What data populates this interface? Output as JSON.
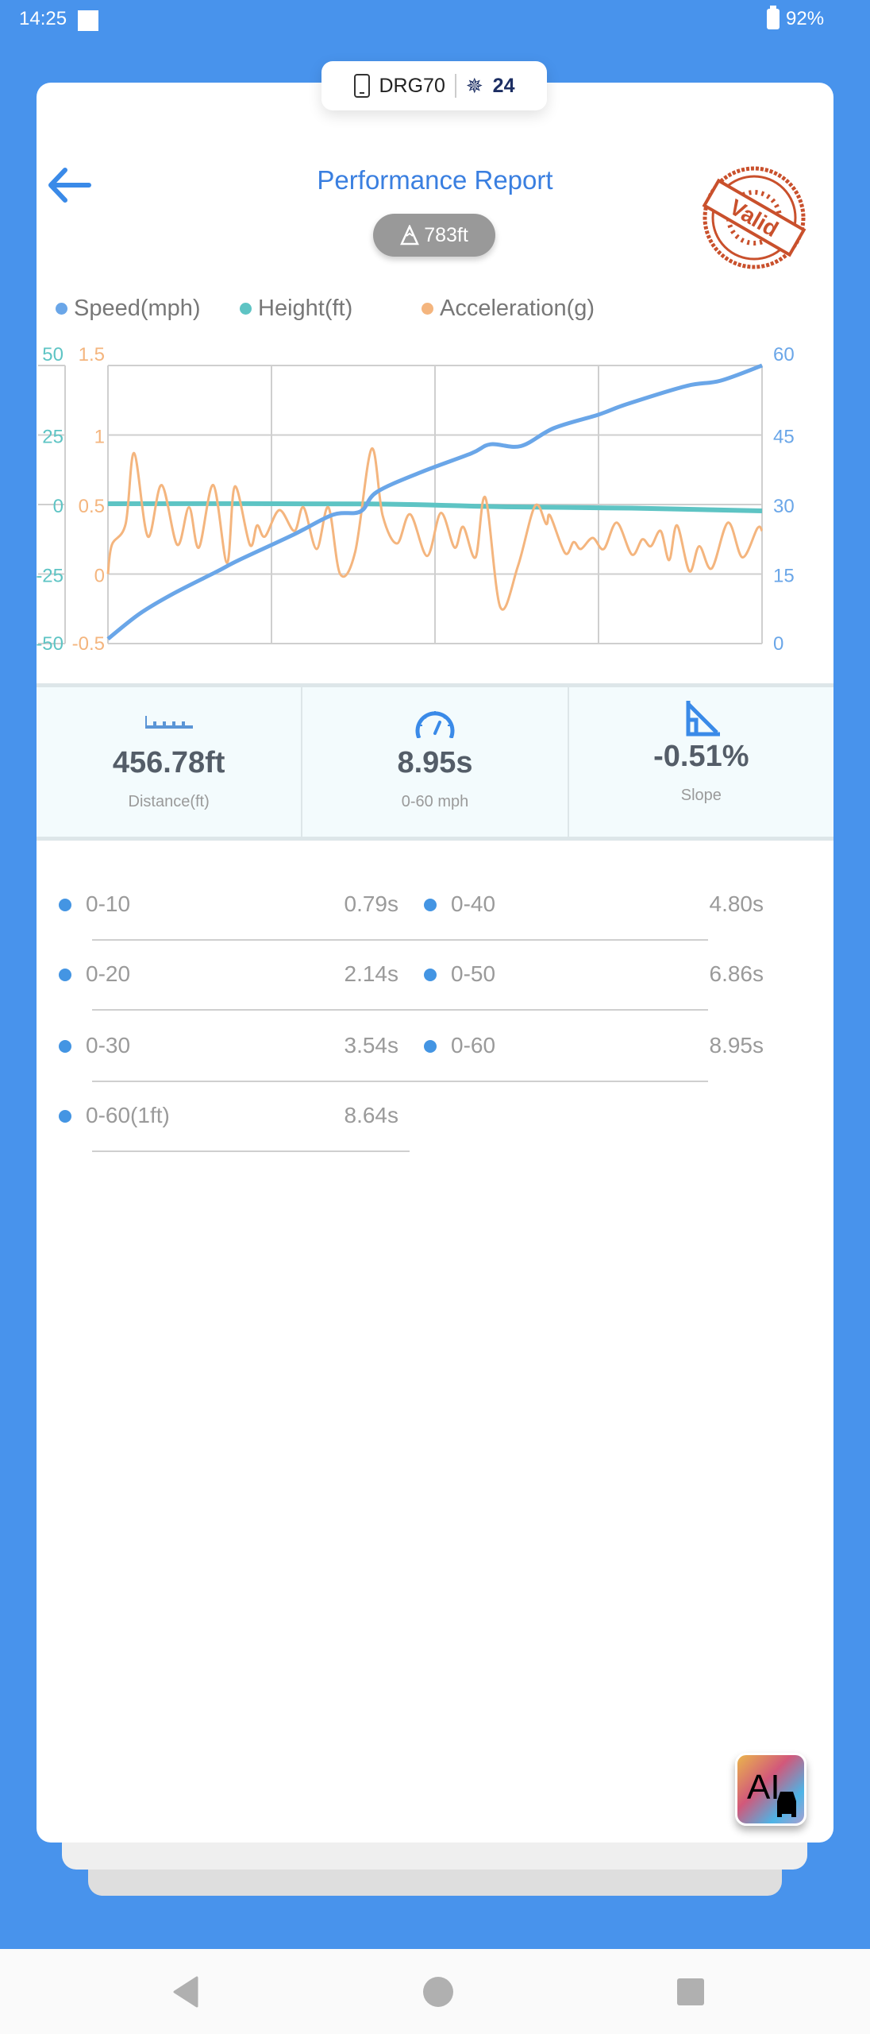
{
  "status_bar": {
    "time": "14:25",
    "battery": "92%"
  },
  "device": {
    "name": "DRG70",
    "satellites": "24"
  },
  "header": {
    "title": "Performance Report",
    "altitude": "783ft",
    "stamp": "Valid"
  },
  "colors": {
    "speed": "#6aa6e8",
    "height": "#5ec4c4",
    "acceleration": "#f4b57e",
    "accent": "#3a7fe0",
    "background": "#4893ec"
  },
  "chart_data": {
    "type": "line",
    "legend": [
      "Speed(mph)",
      "Height(ft)",
      "Acceleration(g)"
    ],
    "legend_position": "top",
    "grid": true,
    "axes": {
      "height": {
        "ticks": [
          "50",
          "25",
          "0",
          "-25",
          "-50"
        ],
        "range": [
          -50,
          50
        ],
        "side": "left"
      },
      "acceleration": {
        "ticks": [
          "1.5",
          "1",
          "0.5",
          "0",
          "-0.5"
        ],
        "range": [
          -0.5,
          1.5
        ],
        "side": "left"
      },
      "speed": {
        "ticks": [
          "60",
          "45",
          "30",
          "15",
          "0"
        ],
        "range": [
          0,
          60
        ],
        "side": "right"
      }
    },
    "series": [
      {
        "name": "Speed(mph)",
        "axis": "speed",
        "x": [
          0,
          4.8,
          9.9,
          16.6,
          20,
          28.5,
          34.4,
          38.6,
          41.1,
          47.9,
          55.5,
          58.5,
          63.1,
          68.2,
          75,
          79.2,
          88.5,
          93.6,
          100
        ],
        "y": [
          1,
          6.4,
          10.7,
          15.5,
          18,
          23.6,
          27.8,
          28.5,
          32.7,
          37,
          41,
          43,
          42.6,
          46.5,
          49.4,
          51.6,
          55.6,
          56.7,
          60
        ]
      },
      {
        "name": "Height(ft)",
        "axis": "height",
        "x": [
          0,
          40,
          60,
          80,
          100
        ],
        "y": [
          0.3,
          0.2,
          -0.8,
          -1.3,
          -2.3
        ]
      },
      {
        "name": "Acceleration(g)",
        "axis": "acceleration",
        "x": [
          0,
          0.6,
          2.7,
          4,
          6.1,
          8.2,
          10.6,
          12.4,
          13.9,
          16.1,
          18.2,
          19.4,
          21.7,
          22.8,
          24,
          26.2,
          28.5,
          29.9,
          31.9,
          33.7,
          35.5,
          37.8,
          40.3,
          42,
          44.2,
          46.2,
          48.8,
          50.9,
          53,
          54.3,
          56.2,
          57.7,
          60,
          62.7,
          65.3,
          67,
          67.6,
          69.9,
          71.2,
          72.3,
          74.1,
          75.8,
          77.8,
          80.1,
          81.7,
          83,
          84.5,
          85.8,
          87,
          88.9,
          90.4,
          92.3,
          94.8,
          97,
          99.3,
          100
        ],
        "y": [
          0,
          0.21,
          0.36,
          0.87,
          0.27,
          0.64,
          0.21,
          0.48,
          0.19,
          0.64,
          0.08,
          0.63,
          0.21,
          0.35,
          0.27,
          0.46,
          0.31,
          0.48,
          0.18,
          0.48,
          0,
          0.16,
          0.9,
          0.42,
          0.22,
          0.43,
          0.13,
          0.44,
          0.19,
          0.34,
          0.12,
          0.55,
          -0.24,
          0.06,
          0.49,
          0.36,
          0.42,
          0.15,
          0.23,
          0.18,
          0.26,
          0.18,
          0.37,
          0.14,
          0.25,
          0.2,
          0.31,
          0.1,
          0.35,
          0.02,
          0.2,
          0.04,
          0.37,
          0.12,
          0.33,
          0.31
        ]
      }
    ]
  },
  "stats": [
    {
      "icon": "ruler-icon",
      "value": "456.78ft",
      "label": "Distance(ft)"
    },
    {
      "icon": "speedometer-icon",
      "value": "8.95s",
      "label": "0-60 mph"
    },
    {
      "icon": "slope-icon",
      "value": "-0.51%",
      "label": "Slope"
    }
  ],
  "splits": [
    {
      "label": "0-10",
      "value": "0.79s"
    },
    {
      "label": "0-40",
      "value": "4.80s"
    },
    {
      "label": "0-20",
      "value": "2.14s"
    },
    {
      "label": "0-50",
      "value": "6.86s"
    },
    {
      "label": "0-30",
      "value": "3.54s"
    },
    {
      "label": "0-60",
      "value": "8.95s"
    },
    {
      "label": "0-60(1ft)",
      "value": "8.64s"
    }
  ],
  "ai_button": {
    "label": "AI"
  }
}
